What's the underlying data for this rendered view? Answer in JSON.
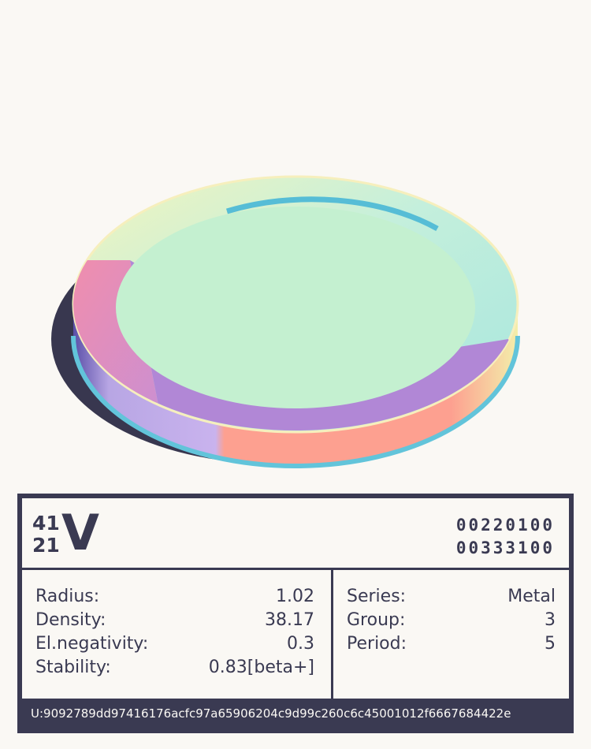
{
  "element": {
    "mass_number": "41",
    "atomic_number": "21",
    "symbol": "V",
    "code_line_1": "00220100",
    "code_line_2": "00333100"
  },
  "properties_left": [
    {
      "label": "Radius:",
      "value": "1.02"
    },
    {
      "label": "Density:",
      "value": "38.17"
    },
    {
      "label": "El.negativity:",
      "value": "0.3"
    },
    {
      "label": "Stability:",
      "value": "0.83[beta+]"
    }
  ],
  "properties_right": [
    {
      "label": "Series:",
      "value": "Metal"
    },
    {
      "label": "Group:",
      "value": "3"
    },
    {
      "label": "Period:",
      "value": "5"
    }
  ],
  "footer": {
    "hash": "U:9092789dd97416176acfc97a65906204c9d99c260c6c45001012f6667684422e"
  },
  "colors": {
    "ink": "#3a3a52",
    "background": "#faf8f4",
    "disc_center": "#c4f0d0",
    "ring_pink": "#f08fae",
    "ring_purple": "#b187d6",
    "ring_salmon": "#fda090",
    "ring_cyan": "#ace8dc",
    "ring_yellow": "#ecf3be",
    "edge_blue": "#62c4da"
  }
}
